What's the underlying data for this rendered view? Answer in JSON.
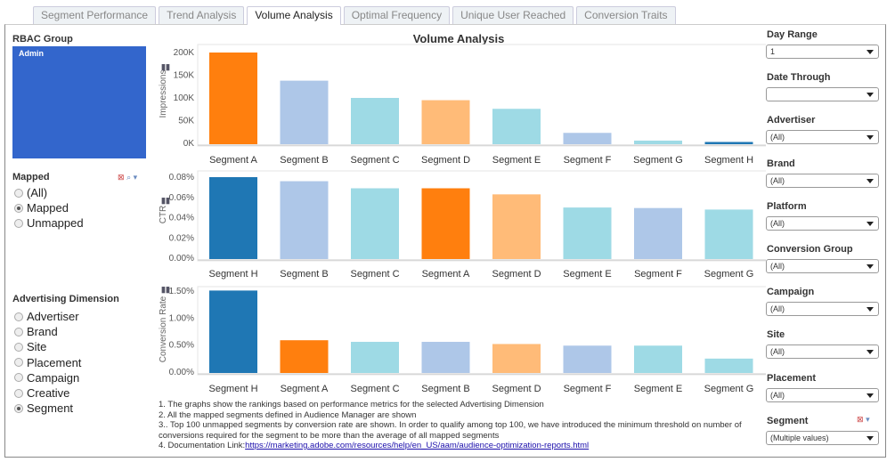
{
  "tabs": [
    "Segment Performance",
    "Trend Analysis",
    "Volume Analysis",
    "Optimal Frequency",
    "Unique User Reached",
    "Conversion Traits"
  ],
  "active_tab": 2,
  "left": {
    "rbac_label": "RBAC Group",
    "rbac_value": "Admin",
    "mapped_label": "Mapped",
    "mapped_options": [
      "(All)",
      "Mapped",
      "Unmapped"
    ],
    "mapped_selected": 1,
    "dimension_label": "Advertising Dimension",
    "dimension_options": [
      "Advertiser",
      "Brand",
      "Site",
      "Placement",
      "Campaign",
      "Creative",
      "Segment"
    ],
    "dimension_selected": 6
  },
  "right": {
    "filters": [
      {
        "label": "Day Range",
        "value": "1"
      },
      {
        "label": "Date Through",
        "value": ""
      },
      {
        "label": "Advertiser",
        "value": "(All)"
      },
      {
        "label": "Brand",
        "value": "(All)"
      },
      {
        "label": "Platform",
        "value": "(All)"
      },
      {
        "label": "Conversion Group",
        "value": "(All)"
      },
      {
        "label": "Campaign",
        "value": "(All)"
      },
      {
        "label": "Site",
        "value": "(All)"
      },
      {
        "label": "Placement",
        "value": "(All)"
      },
      {
        "label": "Segment",
        "value": "(Multiple values)"
      }
    ]
  },
  "colors": {
    "Segment A": "#ff7f0e",
    "Segment B": "#aec7e8",
    "Segment C": "#9edae5",
    "Segment D": "#ffbb78",
    "Segment E": "#9edae5",
    "Segment F": "#aec7e8",
    "Segment G": "#9edae5",
    "Segment H": "#1f77b4"
  },
  "chart_data": [
    {
      "type": "bar",
      "title": "Volume Analysis",
      "ylabel": "Impressions",
      "ylim": [
        0,
        200000
      ],
      "ticks": [
        "0K",
        "50K",
        "100K",
        "150K",
        "200K"
      ],
      "tickvals": [
        0,
        50000,
        100000,
        150000,
        200000
      ],
      "categories": [
        "Segment A",
        "Segment B",
        "Segment C",
        "Segment D",
        "Segment E",
        "Segment F",
        "Segment G",
        "Segment H"
      ],
      "values": [
        200000,
        138000,
        100000,
        95000,
        76000,
        23000,
        6000,
        3000
      ]
    },
    {
      "type": "bar",
      "ylabel": "CTR",
      "ylim": [
        0,
        0.08
      ],
      "ticks": [
        "0.00%",
        "0.02%",
        "0.04%",
        "0.06%",
        "0.08%"
      ],
      "tickvals": [
        0,
        0.02,
        0.04,
        0.06,
        0.08
      ],
      "categories": [
        "Segment H",
        "Segment B",
        "Segment C",
        "Segment A",
        "Segment D",
        "Segment E",
        "Segment F",
        "Segment G"
      ],
      "values": [
        0.08,
        0.076,
        0.069,
        0.069,
        0.063,
        0.05,
        0.0495,
        0.048
      ]
    },
    {
      "type": "bar",
      "ylabel": "Conversion Rate",
      "ylim": [
        0,
        1.5
      ],
      "ticks": [
        "0.00%",
        "0.50%",
        "1.00%",
        "1.50%"
      ],
      "tickvals": [
        0,
        0.5,
        1.0,
        1.5
      ],
      "categories": [
        "Segment H",
        "Segment A",
        "Segment C",
        "Segment B",
        "Segment D",
        "Segment F",
        "Segment E",
        "Segment G"
      ],
      "values": [
        1.51,
        0.59,
        0.56,
        0.56,
        0.52,
        0.49,
        0.49,
        0.25
      ]
    }
  ],
  "notes": [
    "1. The graphs show the rankings based on performance metrics for the selected Advertising Dimension",
    "2. All the mapped segments defined in Audience Manager are shown",
    "3.. Top 100 unmapped segments by conversion rate are shown. In order to qualify among top 100, we have introduced the minimum threshold on number of conversions required for the segment to be more than the average of all mapped segments"
  ],
  "doc_prefix": "4. Documentation Link:",
  "doc_link": "https://marketing.adobe.com/resources/help/en_US/aam/audience-optimization-reports.html"
}
